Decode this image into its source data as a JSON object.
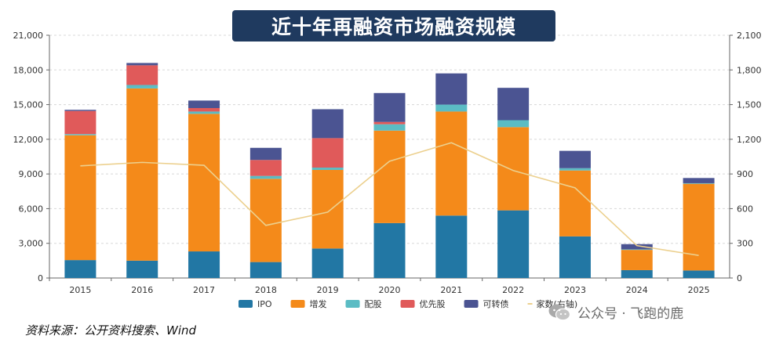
{
  "title": "近十年再融资市场融资规模",
  "source": "资料来源：公开资料搜索、Wind",
  "watermark": {
    "text": "公众号 · 飞跑的鹿",
    "icon": "wechat-icon"
  },
  "colors": {
    "IPO": "#2277a4",
    "增发": "#f48a1a",
    "配股": "#5bbcc4",
    "优先股": "#e05a5a",
    "可转债": "#4b5492",
    "家数(右轴)": "#ecd08e",
    "title_bg": "#1f3a5f"
  },
  "chart_data": {
    "type": "bar",
    "stacked": true,
    "categories": [
      "2015",
      "2016",
      "2017",
      "2018",
      "2019",
      "2020",
      "2021",
      "2022",
      "2023",
      "2024",
      "2025"
    ],
    "series": [
      {
        "name": "IPO",
        "values": [
          1550,
          1500,
          2300,
          1380,
          2550,
          4750,
          5400,
          5850,
          3600,
          680,
          650
        ]
      },
      {
        "name": "增发",
        "values": [
          10800,
          14900,
          11900,
          7200,
          6800,
          8000,
          9000,
          7200,
          5700,
          1750,
          7500
        ]
      },
      {
        "name": "配股",
        "values": [
          100,
          300,
          200,
          250,
          200,
          550,
          600,
          600,
          200,
          50,
          50
        ]
      },
      {
        "name": "优先股",
        "values": [
          2000,
          1700,
          300,
          1380,
          2550,
          200,
          0,
          0,
          0,
          0,
          0
        ]
      },
      {
        "name": "可转债",
        "values": [
          100,
          200,
          650,
          1050,
          2500,
          2500,
          2700,
          2800,
          1500,
          450,
          450
        ]
      }
    ],
    "line": {
      "name": "家数(右轴)",
      "values": [
        970,
        1000,
        975,
        455,
        570,
        1010,
        1170,
        930,
        780,
        280,
        195
      ]
    },
    "y_left": {
      "min": 0,
      "max": 21000,
      "ticks": [
        "0",
        "3,000",
        "6,000",
        "9,000",
        "12,000",
        "15,000",
        "18,000",
        "21,000"
      ]
    },
    "y_right": {
      "min": 0,
      "max": 2100,
      "ticks": [
        "0",
        "300",
        "600",
        "900",
        "1,200",
        "1,500",
        "1,800",
        "2,100"
      ]
    },
    "grid": true,
    "legend": "bottom"
  }
}
